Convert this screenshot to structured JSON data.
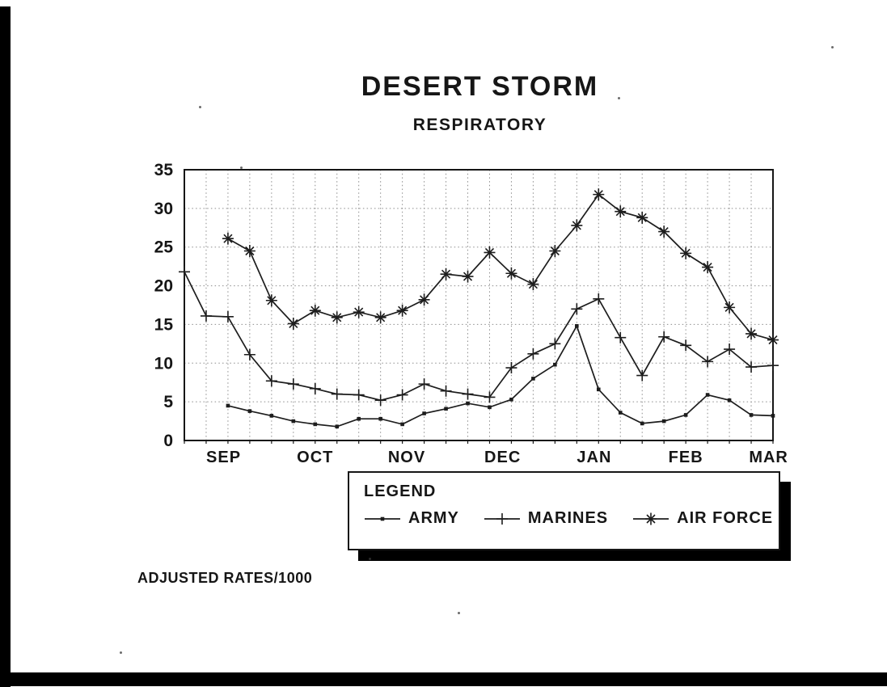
{
  "page": {
    "background": "#ffffff",
    "ink_color": "#161616",
    "grid_color": "#8d8d8d"
  },
  "chart_data": {
    "type": "line",
    "title": "DESERT STORM",
    "subtitle": "RESPIRATORY",
    "footnote": "ADJUSTED RATES/1000",
    "x_axis": {
      "unit": "week",
      "n_points": 28,
      "month_labels": [
        "SEP",
        "OCT",
        "NOV",
        "DEC",
        "JAN",
        "FEB",
        "MAR"
      ],
      "month_label_week_positions": [
        1.8,
        6.0,
        10.2,
        14.6,
        18.8,
        23.0,
        26.8
      ]
    },
    "y_axis": {
      "min": 0,
      "max": 35,
      "tick_interval": 5,
      "tick_labels": [
        "0",
        "5",
        "10",
        "15",
        "20",
        "25",
        "30",
        "35"
      ]
    },
    "grid": "dotted",
    "legend": {
      "title": "LEGEND",
      "position": "bottom",
      "entries": [
        "ARMY",
        "MARINES",
        "AIR FORCE"
      ]
    },
    "series": [
      {
        "name": "ARMY",
        "marker": "dot",
        "start_week": 2,
        "values": [
          4.5,
          3.8,
          3.2,
          2.5,
          2.1,
          1.8,
          2.8,
          2.8,
          2.1,
          3.5,
          4.1,
          4.8,
          4.3,
          5.3,
          8.0,
          9.8,
          14.8,
          6.6,
          3.6,
          2.2,
          2.5,
          3.3,
          5.9,
          5.2,
          3.3,
          3.2
        ]
      },
      {
        "name": "MARINES",
        "marker": "plus",
        "start_week": 0,
        "values": [
          21.8,
          16.1,
          16.0,
          11.1,
          7.7,
          7.3,
          6.7,
          6.0,
          5.9,
          5.2,
          5.9,
          7.3,
          6.4,
          6.0,
          5.6,
          9.4,
          11.2,
          12.5,
          17.0,
          18.3,
          13.3,
          8.4,
          13.4,
          12.3,
          10.2,
          11.8,
          9.5,
          9.7
        ]
      },
      {
        "name": "AIR FORCE",
        "marker": "asterisk",
        "start_week": 2,
        "values": [
          26.1,
          24.5,
          18.1,
          15.1,
          16.8,
          15.9,
          16.6,
          15.9,
          16.8,
          18.2,
          21.5,
          21.2,
          24.3,
          21.6,
          20.2,
          24.5,
          27.8,
          31.8,
          29.6,
          28.8,
          27.0,
          24.2,
          22.4,
          17.2,
          13.8,
          13.0
        ]
      }
    ]
  }
}
